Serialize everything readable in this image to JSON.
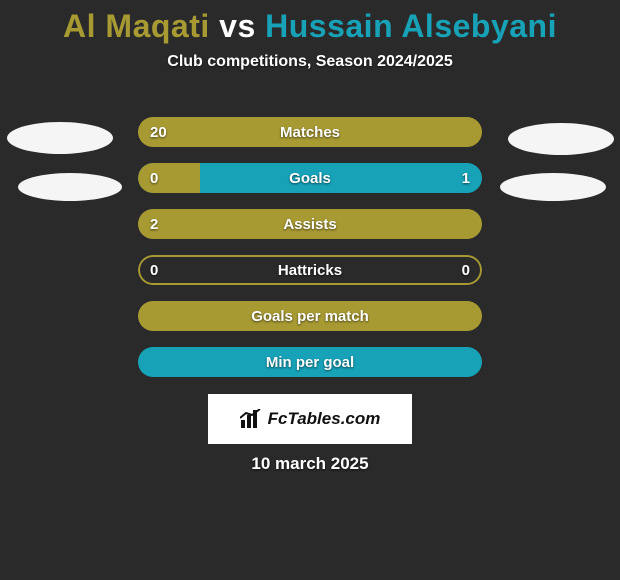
{
  "title": {
    "player1": "Al Maqati",
    "vs": "vs",
    "player2": "Hussain Alsebyani",
    "player1_color": "#a89a33",
    "vs_color": "#ffffff",
    "player2_color": "#17a2b8"
  },
  "subtitle": "Club competitions, Season 2024/2025",
  "colors": {
    "background": "#2a2a2a",
    "p1": "#a89a33",
    "p2": "#17a2b8",
    "neutral_border": "#a89a33",
    "text": "#ffffff"
  },
  "bar": {
    "height": 30,
    "radius": 15,
    "font_size": 15
  },
  "stats": [
    {
      "label": "Matches",
      "left_value": "20",
      "right_value": "",
      "left_pct": 100,
      "right_pct": 0,
      "left_color": "#a89a33",
      "right_color": "#17a2b8",
      "border_color": "#a89a33"
    },
    {
      "label": "Goals",
      "left_value": "0",
      "right_value": "1",
      "left_pct": 18,
      "right_pct": 82,
      "left_color": "#a89a33",
      "right_color": "#17a2b8",
      "border_color": "#17a2b8"
    },
    {
      "label": "Assists",
      "left_value": "2",
      "right_value": "",
      "left_pct": 100,
      "right_pct": 0,
      "left_color": "#a89a33",
      "right_color": "#17a2b8",
      "border_color": "#a89a33"
    },
    {
      "label": "Hattricks",
      "left_value": "0",
      "right_value": "0",
      "left_pct": 0,
      "right_pct": 0,
      "left_color": "#a89a33",
      "right_color": "#17a2b8",
      "border_color": "#a89a33"
    },
    {
      "label": "Goals per match",
      "left_value": "",
      "right_value": "",
      "left_pct": 100,
      "right_pct": 0,
      "left_color": "#a89a33",
      "right_color": "#17a2b8",
      "border_color": "#a89a33"
    },
    {
      "label": "Min per goal",
      "left_value": "",
      "right_value": "",
      "left_pct": 0,
      "right_pct": 100,
      "left_color": "#a89a33",
      "right_color": "#17a2b8",
      "border_color": "#17a2b8"
    }
  ],
  "logo": {
    "text": "FcTables.com",
    "icon_color": "#111111",
    "box_bg": "#ffffff"
  },
  "date": "10 march 2025"
}
